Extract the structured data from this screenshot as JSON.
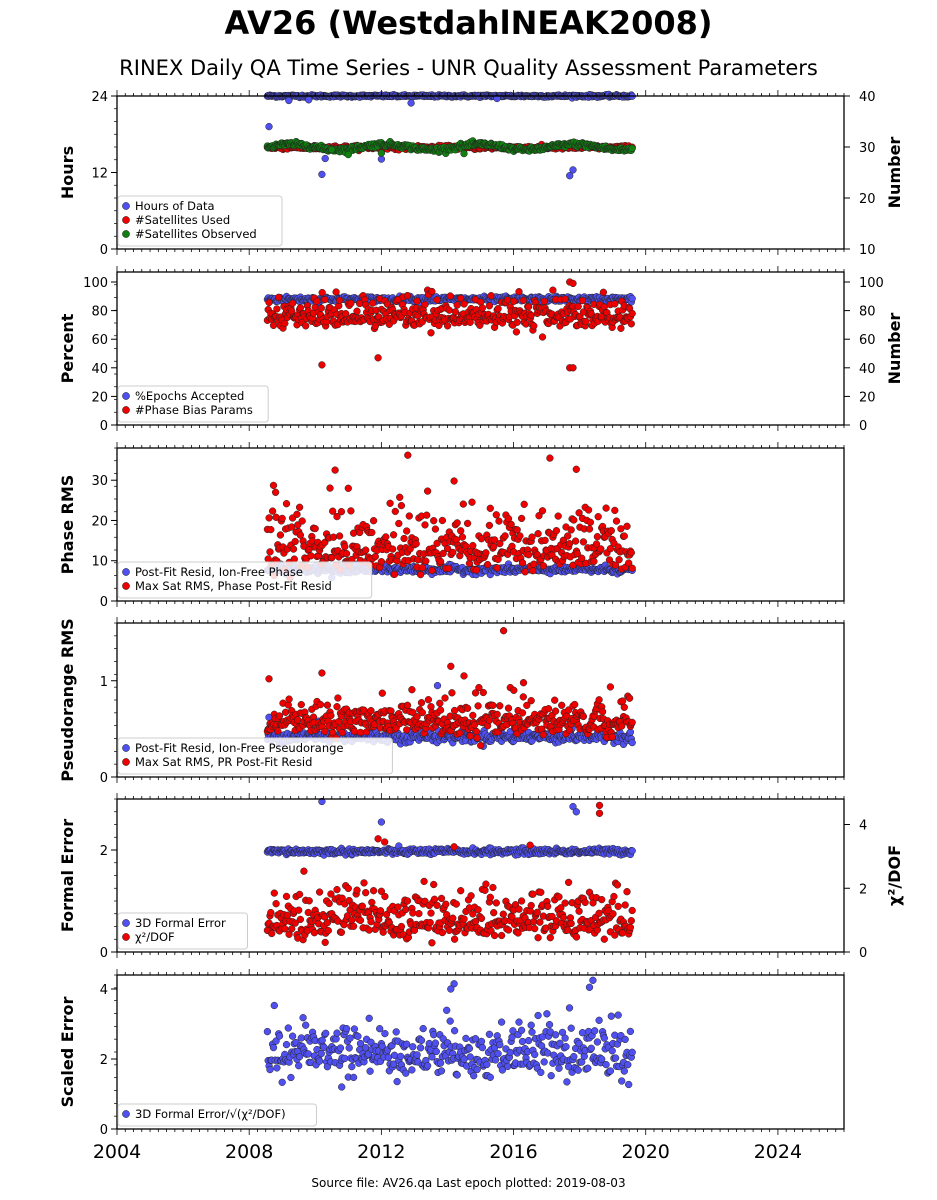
{
  "title": "AV26 (WestdahlNEAK2008)",
  "subtitle": "RINEX Daily QA Time Series - UNR Quality Assessment Parameters",
  "footer": "Source file: AV26.qa Last epoch plotted: 2019-08-03",
  "colors": {
    "blue": "#5050f0",
    "red": "#ee0000",
    "green": "#108010",
    "edge": "#222222"
  },
  "chart_data": [
    {
      "type": "scatter",
      "ylabel": "Hours",
      "ylabel2": "Number",
      "xlim": [
        2004,
        2026
      ],
      "ylim": [
        0,
        24
      ],
      "ylim2": [
        10,
        40
      ],
      "yticks": [
        "0",
        "12",
        "24"
      ],
      "yticks2": [
        "10",
        "20",
        "30",
        "40"
      ],
      "series": [
        {
          "name": "Hours of Data",
          "color": "blue",
          "axis": "left",
          "pattern": "band",
          "center": 24,
          "spread": 0.15,
          "outliers": [
            [
              2008.6,
              19.2
            ],
            [
              2009.2,
              23.3
            ],
            [
              2009.8,
              23.4
            ],
            [
              2010.2,
              11.7
            ],
            [
              2010.3,
              14.2
            ],
            [
              2012.0,
              14.1
            ],
            [
              2012.9,
              22.9
            ],
            [
              2015.5,
              23.6
            ],
            [
              2017.7,
              11.5
            ],
            [
              2017.8,
              12.4
            ]
          ]
        },
        {
          "name": "#Satellites Used",
          "color": "red",
          "axis": "right",
          "pattern": "band",
          "center": 29.9,
          "spread": 0.3,
          "outliers": [
            [
              2009.6,
              30.0
            ]
          ]
        },
        {
          "name": "#Satellites Observed",
          "color": "green",
          "axis": "right",
          "pattern": "wave",
          "center": 30.0,
          "spread": 0.9,
          "outliers": [
            [
              2010.5,
              29.5
            ],
            [
              2011.0,
              28.5
            ],
            [
              2012.0,
              28.8
            ],
            [
              2014.5,
              28.7
            ]
          ]
        }
      ],
      "date_range": [
        2008.55,
        2019.59
      ]
    },
    {
      "type": "scatter",
      "ylabel": "Percent",
      "ylabel2": "Number",
      "xlim": [
        2004,
        2026
      ],
      "ylim": [
        0,
        107
      ],
      "ylim2": [
        0,
        107
      ],
      "yticks": [
        "0",
        "20",
        "40",
        "60",
        "80",
        "100"
      ],
      "yticks2": [
        "0",
        "20",
        "40",
        "60",
        "80",
        "100"
      ],
      "series": [
        {
          "name": "%Epochs Accepted",
          "color": "blue",
          "axis": "left",
          "pattern": "band",
          "center": 88,
          "spread": 1.5,
          "outliers": []
        },
        {
          "name": "#Phase Bias Params",
          "color": "red",
          "axis": "right",
          "pattern": "cloud",
          "center": 76,
          "spread": 7,
          "outliers": [
            [
              2010.2,
              42
            ],
            [
              2011.9,
              47
            ],
            [
              2017.7,
              40
            ],
            [
              2017.8,
              40
            ],
            [
              2017.7,
              100
            ],
            [
              2017.8,
              99
            ]
          ]
        }
      ],
      "date_range": [
        2008.55,
        2019.59
      ]
    },
    {
      "type": "scatter",
      "ylabel": "Phase RMS",
      "xlim": [
        2004,
        2026
      ],
      "ylim": [
        0,
        38
      ],
      "yticks": [
        "0",
        "10",
        "20",
        "30"
      ],
      "series": [
        {
          "name": "Post-Fit Resid, Ion-Free Phase",
          "color": "blue",
          "axis": "left",
          "pattern": "band",
          "center": 7.8,
          "spread": 0.8,
          "outliers": [
            [
              2010.5,
              5.8
            ]
          ]
        },
        {
          "name": "Max Sat RMS, Phase Post-Fit Resid",
          "color": "red",
          "axis": "left",
          "pattern": "cloud",
          "center": 13,
          "spread": 5,
          "outliers": [
            [
              2010.6,
              32.5
            ],
            [
              2012.8,
              36.2
            ],
            [
              2014.2,
              29.8
            ],
            [
              2017.1,
              35.5
            ],
            [
              2017.9,
              32.7
            ],
            [
              2008.8,
              27
            ],
            [
              2011.0,
              28
            ]
          ]
        }
      ],
      "date_range": [
        2008.55,
        2019.59
      ]
    },
    {
      "type": "scatter",
      "ylabel": "Pseudorange RMS",
      "xlim": [
        2004,
        2026
      ],
      "ylim": [
        0,
        1.6
      ],
      "yticks": [
        "0",
        "1"
      ],
      "series": [
        {
          "name": "Post-Fit Resid, Ion-Free Pseudorange",
          "color": "blue",
          "axis": "left",
          "pattern": "band",
          "center": 0.42,
          "spread": 0.05,
          "outliers": [
            [
              2008.6,
              0.62
            ],
            [
              2009.0,
              0.55
            ],
            [
              2010.1,
              0.58
            ],
            [
              2013.7,
              0.95
            ]
          ]
        },
        {
          "name": "Max Sat RMS, PR Post-Fit Resid",
          "color": "red",
          "axis": "left",
          "pattern": "cloud",
          "center": 0.58,
          "spread": 0.12,
          "outliers": [
            [
              2015.7,
              1.52
            ],
            [
              2014.1,
              1.15
            ],
            [
              2010.2,
              1.08
            ],
            [
              2008.6,
              1.02
            ],
            [
              2014.5,
              1.05
            ],
            [
              2016.3,
              0.98
            ]
          ]
        }
      ],
      "date_range": [
        2008.55,
        2019.59
      ]
    },
    {
      "type": "scatter",
      "ylabel": "Formal Error",
      "ylabel2": "χ²/DOF",
      "xlim": [
        2004,
        2026
      ],
      "ylim": [
        0,
        3.0
      ],
      "ylim2": [
        0,
        4.8
      ],
      "yticks": [
        "0",
        "2"
      ],
      "yticks2": [
        "0",
        "2",
        "4"
      ],
      "series": [
        {
          "name": "3D Formal Error",
          "color": "blue",
          "axis": "left",
          "pattern": "band",
          "center": 1.97,
          "spread": 0.05,
          "outliers": [
            [
              2010.2,
              2.95
            ],
            [
              2012.0,
              2.55
            ],
            [
              2017.8,
              2.85
            ],
            [
              2017.9,
              2.75
            ]
          ]
        },
        {
          "name": "χ²/DOF",
          "color": "red",
          "axis": "right",
          "pattern": "cloud",
          "center": 1.0,
          "spread": 0.5,
          "outliers": [
            [
              2011.9,
              3.55
            ],
            [
              2012.1,
              3.45
            ],
            [
              2014.2,
              3.3
            ],
            [
              2018.6,
              4.6
            ],
            [
              2018.6,
              4.35
            ],
            [
              2016.5,
              3.35
            ],
            [
              2010.3,
              0.3
            ]
          ]
        }
      ],
      "date_range": [
        2008.55,
        2019.59
      ]
    },
    {
      "type": "scatter",
      "ylabel": "Scaled Error",
      "xlim": [
        2004,
        2026
      ],
      "ylim": [
        0,
        4.4
      ],
      "yticks": [
        "0",
        "2",
        "4"
      ],
      "xticks": [
        "2004",
        "2008",
        "2012",
        "2016",
        "2020",
        "2024"
      ],
      "series": [
        {
          "name": "3D Formal Error/√(χ²/DOF)",
          "color": "blue",
          "axis": "left",
          "pattern": "cloud",
          "center": 2.1,
          "spread": 0.5,
          "outliers": [
            [
              2014.2,
              4.15
            ],
            [
              2014.1,
              4.0
            ],
            [
              2018.4,
              4.25
            ],
            [
              2018.3,
              4.05
            ],
            [
              2010.8,
              1.2
            ]
          ]
        }
      ],
      "date_range": [
        2008.55,
        2019.59
      ]
    }
  ]
}
